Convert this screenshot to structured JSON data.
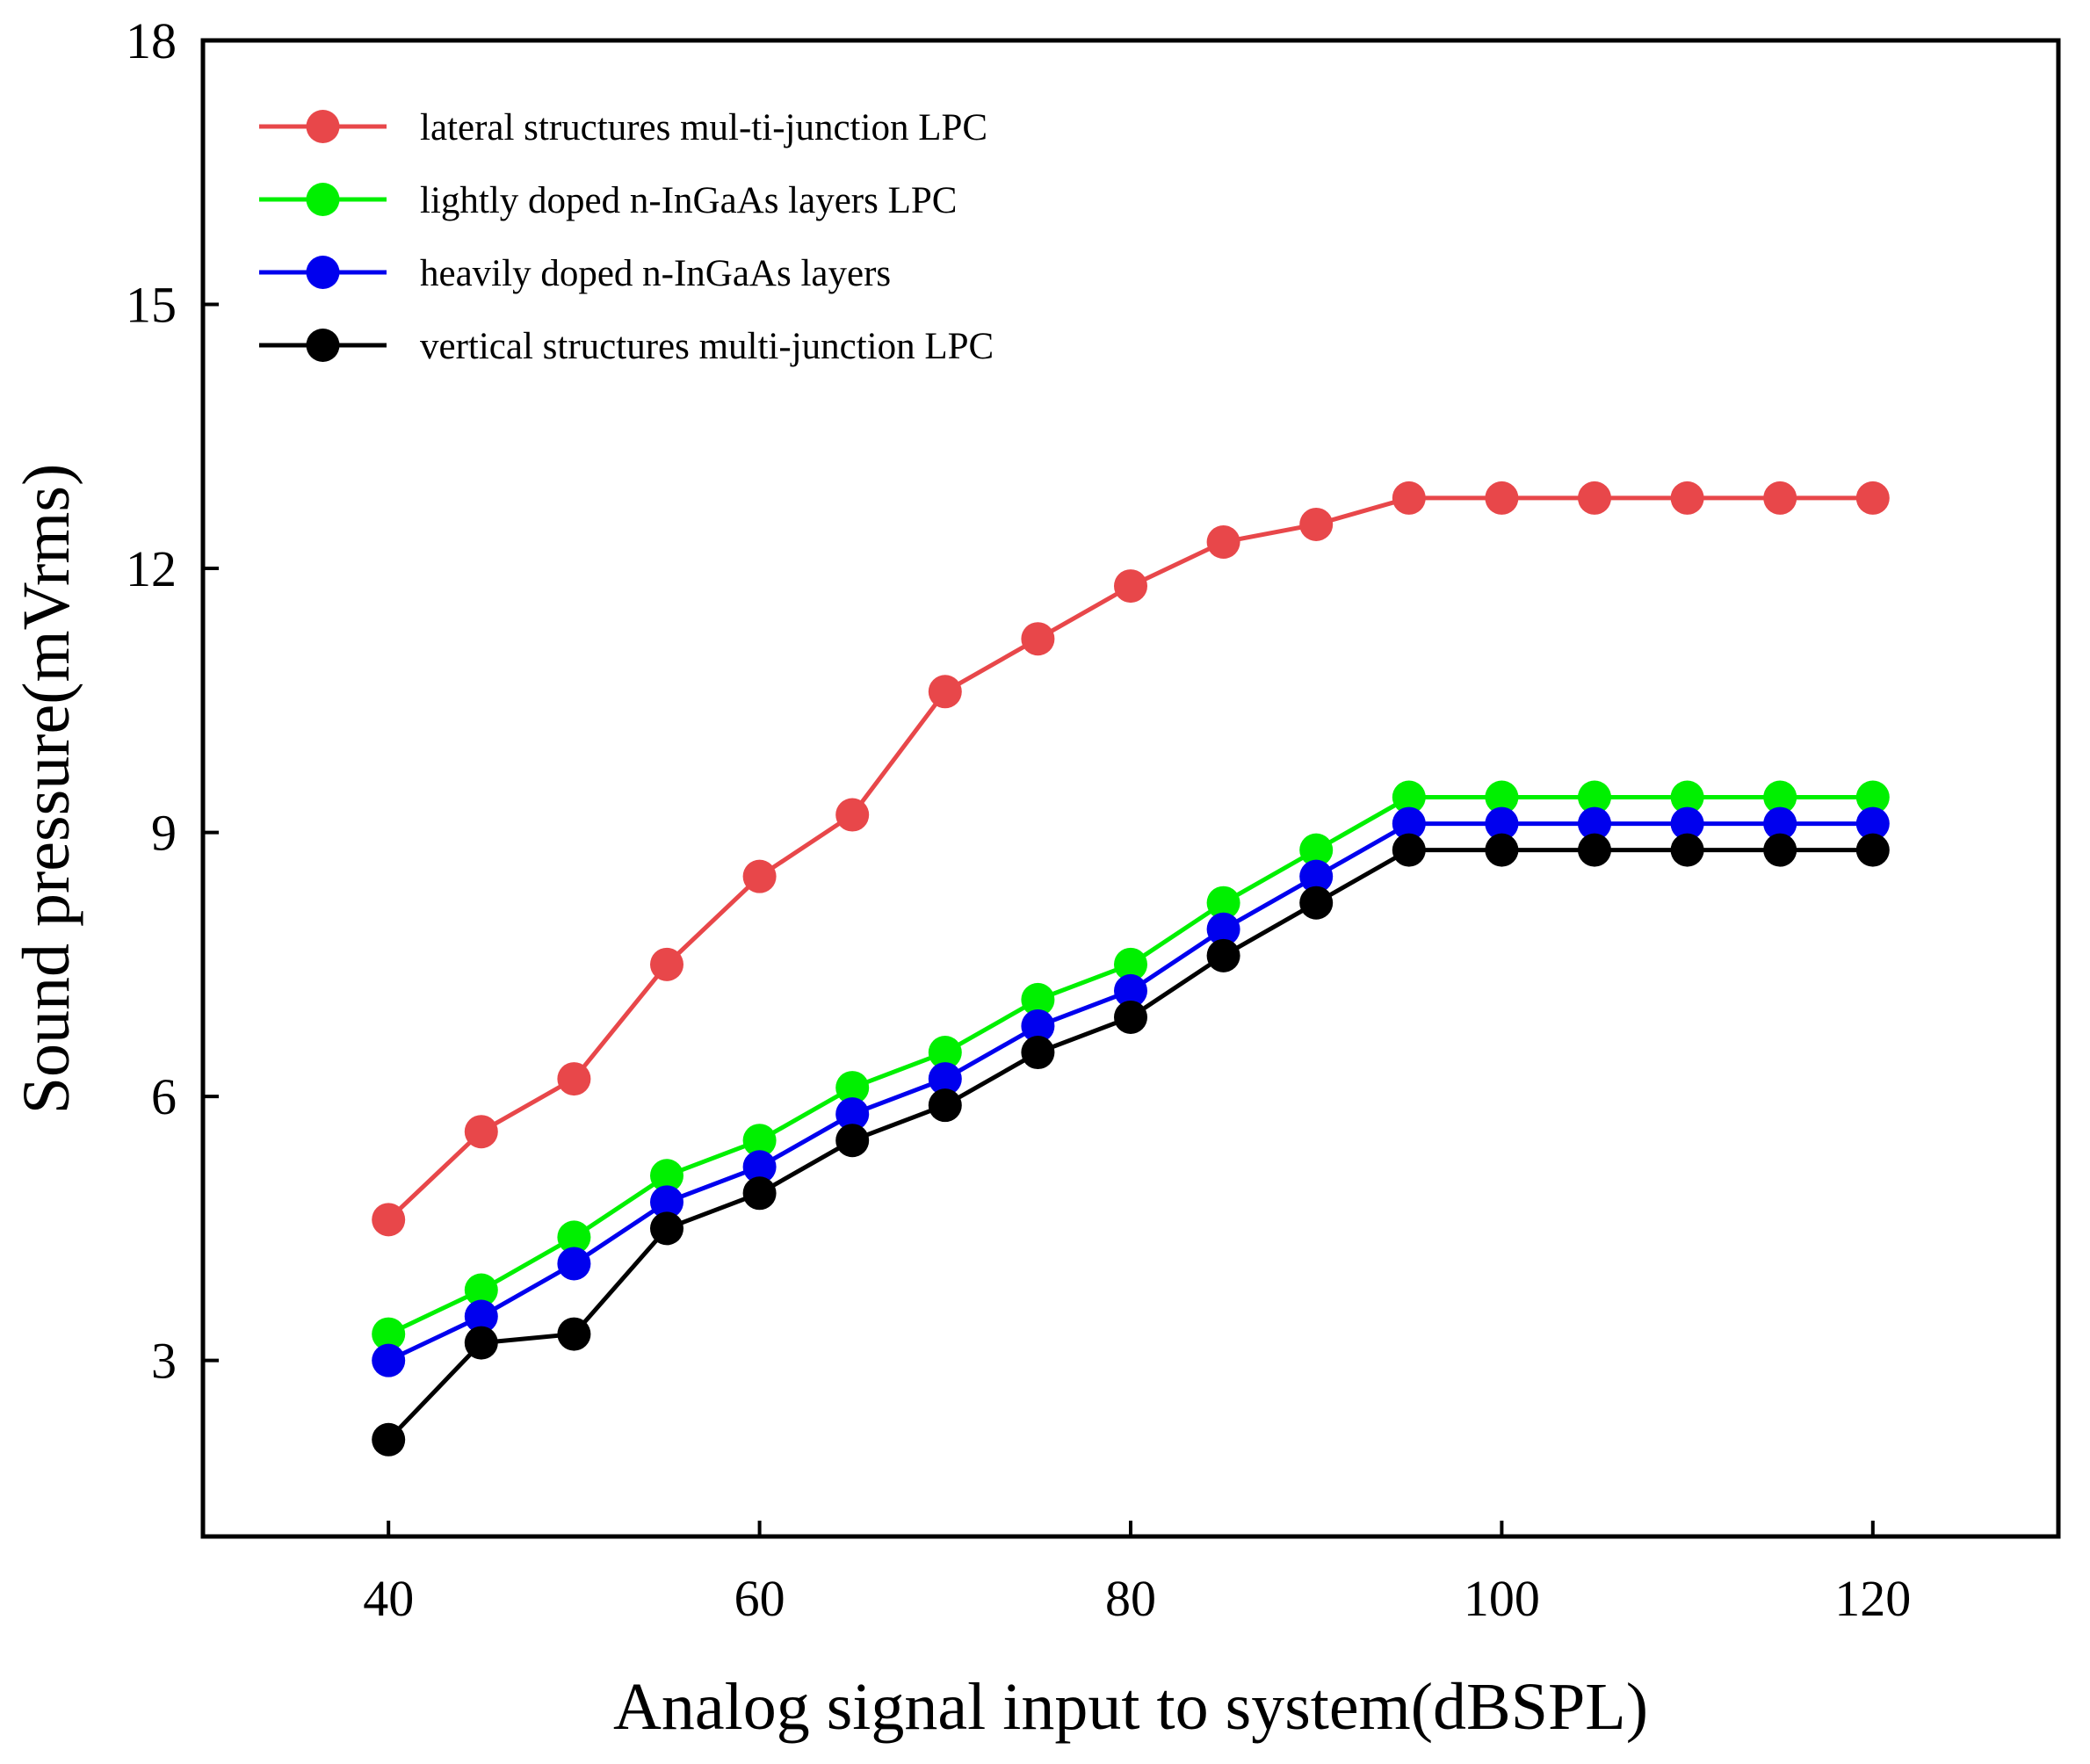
{
  "chart_data": {
    "type": "line",
    "title": "",
    "xlabel": "Analog signal input to system(dBSPL)",
    "ylabel": "Sound pressure(mVrms)",
    "xlim": [
      30,
      130
    ],
    "ylim": [
      1,
      18
    ],
    "xticks": [
      40,
      60,
      80,
      100,
      120
    ],
    "yticks": [
      3,
      6,
      9,
      12,
      15,
      18
    ],
    "grid": false,
    "legend_position": "top-left",
    "x": [
      40,
      45,
      50,
      55,
      60,
      65,
      70,
      75,
      80,
      85,
      90,
      95,
      100,
      105,
      110,
      115,
      120
    ],
    "series": [
      {
        "name": "lateral structures mul-ti-junction LPC",
        "color": "#e8474a",
        "values": [
          4.6,
          5.6,
          6.2,
          7.5,
          8.5,
          9.2,
          10.6,
          11.2,
          11.8,
          12.3,
          12.5,
          12.8,
          12.8,
          12.8,
          12.8,
          12.8,
          12.8
        ]
      },
      {
        "name": "lightly doped n-InGaAs layers LPC",
        "color": "#00f000",
        "values": [
          3.3,
          3.8,
          4.4,
          5.1,
          5.5,
          6.1,
          6.5,
          7.1,
          7.5,
          8.2,
          8.8,
          9.4,
          9.4,
          9.4,
          9.4,
          9.4,
          9.4
        ]
      },
      {
        "name": "heavily doped n-InGaAs layers",
        "color": "#0000ee",
        "values": [
          3.0,
          3.5,
          4.1,
          4.8,
          5.2,
          5.8,
          6.2,
          6.8,
          7.2,
          7.9,
          8.5,
          9.1,
          9.1,
          9.1,
          9.1,
          9.1,
          9.1
        ]
      },
      {
        "name": "vertical structures multi-junction LPC",
        "color": "#000000",
        "values": [
          2.1,
          3.2,
          3.3,
          4.5,
          4.9,
          5.5,
          5.9,
          6.5,
          6.9,
          7.6,
          8.2,
          8.8,
          8.8,
          8.8,
          8.8,
          8.8,
          8.8
        ]
      }
    ]
  }
}
